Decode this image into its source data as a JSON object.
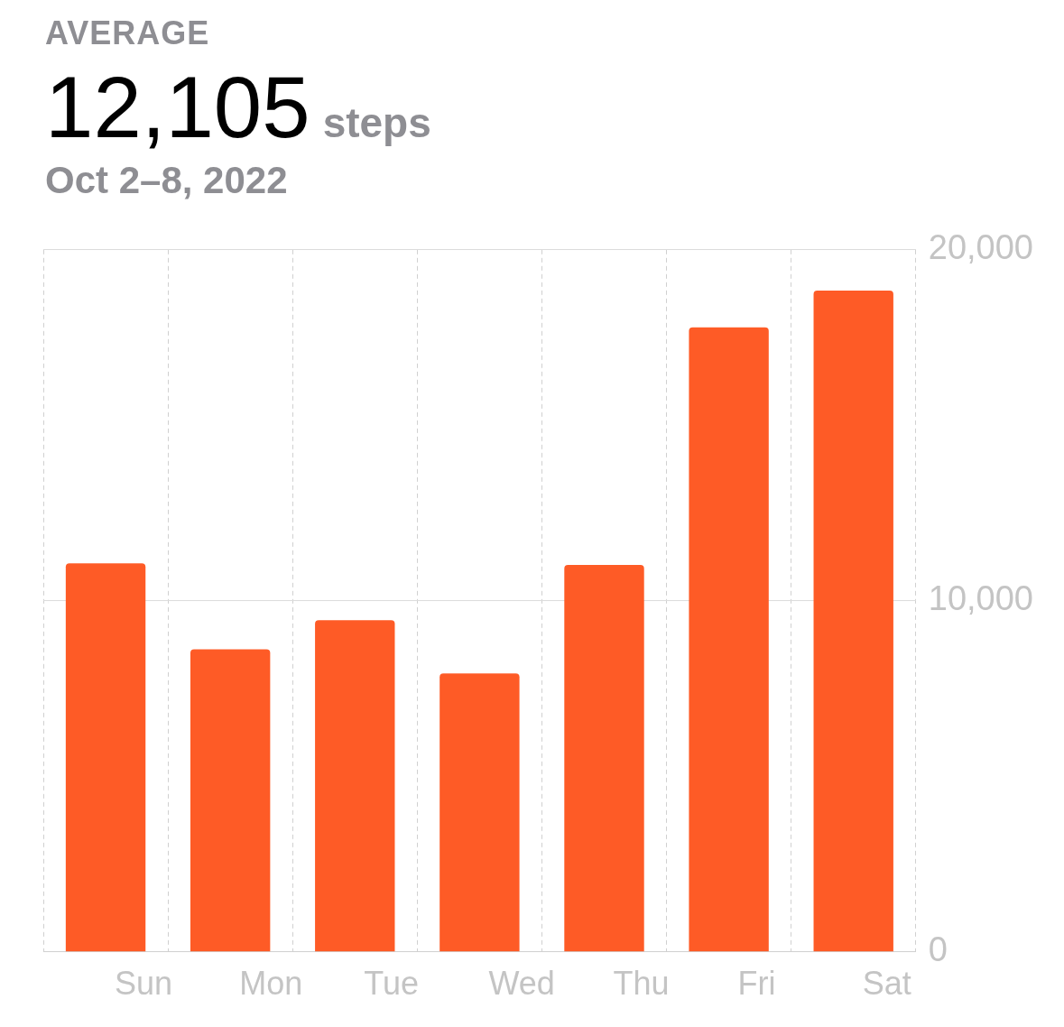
{
  "chart_data": {
    "type": "bar",
    "title": "AVERAGE",
    "annotations": [
      "12,105",
      "steps"
    ],
    "subtitle": "Oct 2–8, 2022",
    "categories": [
      "Sun",
      "Mon",
      "Tue",
      "Wed",
      "Thu",
      "Fri",
      "Sat"
    ],
    "values": [
      11070,
      8620,
      9450,
      7930,
      11020,
      17790,
      18840
    ],
    "color": "#fe5b26",
    "ylim": [
      0,
      20000
    ],
    "yticks": [
      0,
      {
        "value": 10000,
        "label": "10,000"
      },
      {
        "value": 20000,
        "label": "20,000"
      }
    ],
    "grid": true,
    "legend": false
  }
}
